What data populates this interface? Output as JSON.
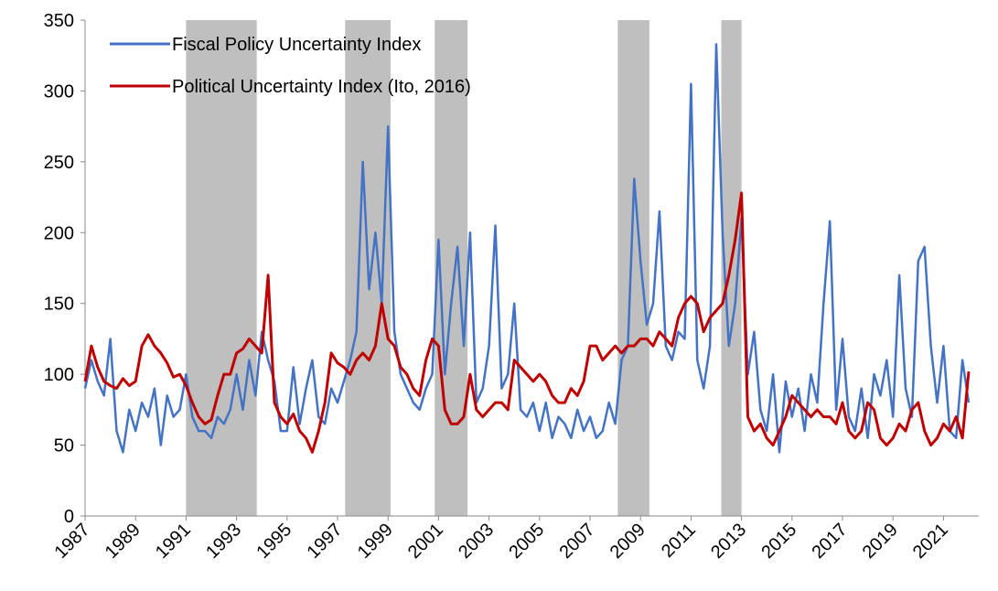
{
  "chart_data": {
    "type": "line",
    "xlim": [
      1987,
      2022.4
    ],
    "ylim": [
      0,
      350
    ],
    "xticks": [
      1987,
      1989,
      1991,
      1993,
      1995,
      1997,
      1999,
      2001,
      2003,
      2005,
      2007,
      2009,
      2011,
      2013,
      2015,
      2017,
      2019,
      2021
    ],
    "yticks": [
      0,
      50,
      100,
      150,
      200,
      250,
      300,
      350
    ],
    "legend": "upper left",
    "shaded_periods": [
      [
        1991.0,
        1993.8
      ],
      [
        1997.3,
        1999.1
      ],
      [
        2000.85,
        2002.15
      ],
      [
        2008.1,
        2009.35
      ],
      [
        2012.2,
        2013.0
      ]
    ],
    "shade_color": "#bfbfbf",
    "x": [
      1987,
      1987.25,
      1987.5,
      1987.75,
      1988,
      1988.25,
      1988.5,
      1988.75,
      1989,
      1989.25,
      1989.5,
      1989.75,
      1990,
      1990.25,
      1990.5,
      1990.75,
      1991,
      1991.25,
      1991.5,
      1991.75,
      1992,
      1992.25,
      1992.5,
      1992.75,
      1993,
      1993.25,
      1993.5,
      1993.75,
      1994,
      1994.25,
      1994.5,
      1994.75,
      1995,
      1995.25,
      1995.5,
      1995.75,
      1996,
      1996.25,
      1996.5,
      1996.75,
      1997,
      1997.25,
      1997.5,
      1997.75,
      1998,
      1998.25,
      1998.5,
      1998.75,
      1999,
      1999.25,
      1999.5,
      1999.75,
      2000,
      2000.25,
      2000.5,
      2000.75,
      2001,
      2001.25,
      2001.5,
      2001.75,
      2002,
      2002.25,
      2002.5,
      2002.75,
      2003,
      2003.25,
      2003.5,
      2003.75,
      2004,
      2004.25,
      2004.5,
      2004.75,
      2005,
      2005.25,
      2005.5,
      2005.75,
      2006,
      2006.25,
      2006.5,
      2006.75,
      2007,
      2007.25,
      2007.5,
      2007.75,
      2008,
      2008.25,
      2008.5,
      2008.75,
      2009,
      2009.25,
      2009.5,
      2009.75,
      2010,
      2010.25,
      2010.5,
      2010.75,
      2011,
      2011.25,
      2011.5,
      2011.75,
      2012,
      2012.25,
      2012.5,
      2012.75,
      2013,
      2013.25,
      2013.5,
      2013.75,
      2014,
      2014.25,
      2014.5,
      2014.75,
      2015,
      2015.25,
      2015.5,
      2015.75,
      2016,
      2016.25,
      2016.5,
      2016.75,
      2017,
      2017.25,
      2017.5,
      2017.75,
      2018,
      2018.25,
      2018.5,
      2018.75,
      2019,
      2019.25,
      2019.5,
      2019.75,
      2020,
      2020.25,
      2020.5,
      2020.75,
      2021,
      2021.25,
      2021.5,
      2021.75,
      2022
    ],
    "series": [
      {
        "name": "Fiscal Policy Uncertainty Index",
        "color": "#4472c4",
        "values": [
          90,
          110,
          95,
          85,
          125,
          60,
          45,
          75,
          60,
          80,
          70,
          90,
          50,
          85,
          70,
          75,
          100,
          70,
          60,
          60,
          55,
          70,
          65,
          75,
          100,
          75,
          110,
          85,
          130,
          110,
          95,
          60,
          60,
          105,
          65,
          90,
          110,
          70,
          65,
          90,
          80,
          95,
          110,
          130,
          250,
          160,
          200,
          150,
          275,
          130,
          100,
          90,
          80,
          75,
          90,
          100,
          195,
          100,
          150,
          190,
          120,
          200,
          80,
          90,
          120,
          205,
          90,
          100,
          150,
          75,
          70,
          80,
          60,
          80,
          55,
          70,
          65,
          55,
          75,
          60,
          70,
          55,
          60,
          80,
          65,
          110,
          120,
          238,
          180,
          135,
          150,
          215,
          120,
          110,
          130,
          125,
          305,
          110,
          90,
          120,
          333,
          200,
          120,
          150,
          210,
          100,
          130,
          75,
          60,
          100,
          45,
          95,
          70,
          90,
          60,
          100,
          80,
          150,
          208,
          75,
          125,
          70,
          60,
          90,
          55,
          100,
          85,
          110,
          70,
          170,
          90,
          70,
          180,
          190,
          120,
          80,
          120,
          60,
          55,
          110,
          80
        ]
      },
      {
        "name": "Political Uncertainty Index (Ito, 2016)",
        "color": "#c00000",
        "values": [
          95,
          120,
          105,
          95,
          92,
          90,
          97,
          92,
          95,
          120,
          128,
          120,
          115,
          108,
          98,
          100,
          92,
          80,
          70,
          65,
          68,
          85,
          100,
          100,
          115,
          118,
          125,
          120,
          115,
          170,
          80,
          70,
          65,
          72,
          60,
          55,
          45,
          60,
          80,
          115,
          108,
          105,
          100,
          110,
          115,
          110,
          120,
          150,
          125,
          120,
          105,
          100,
          90,
          85,
          110,
          125,
          120,
          75,
          65,
          65,
          70,
          100,
          75,
          70,
          75,
          80,
          80,
          75,
          110,
          105,
          100,
          95,
          100,
          95,
          85,
          80,
          80,
          90,
          85,
          95,
          120,
          120,
          110,
          115,
          120,
          115,
          120,
          120,
          125,
          125,
          120,
          130,
          125,
          120,
          140,
          150,
          155,
          150,
          130,
          140,
          145,
          150,
          170,
          195,
          228,
          70,
          60,
          65,
          55,
          50,
          60,
          70,
          85,
          80,
          75,
          70,
          75,
          70,
          70,
          65,
          80,
          60,
          55,
          60,
          80,
          75,
          55,
          50,
          55,
          65,
          60,
          75,
          80,
          60,
          50,
          55,
          65,
          60,
          70,
          55,
          102
        ]
      }
    ]
  }
}
